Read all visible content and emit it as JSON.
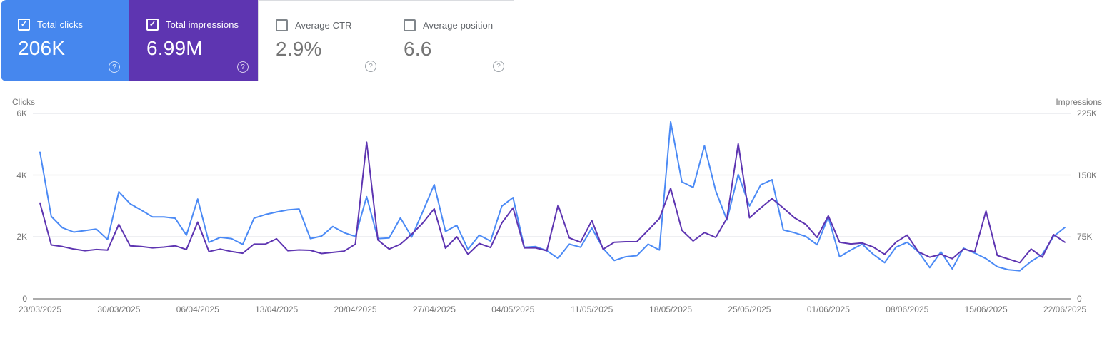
{
  "cards": [
    {
      "label": "Total clicks",
      "value": "206K",
      "checked": true,
      "bg": "#4687ee"
    },
    {
      "label": "Total impressions",
      "value": "6.99M",
      "checked": true,
      "bg": "#5e35b1"
    },
    {
      "label": "Average CTR",
      "value": "2.9%",
      "checked": false,
      "bg": "#ffffff"
    },
    {
      "label": "Average position",
      "value": "6.6",
      "checked": false,
      "bg": "#ffffff"
    }
  ],
  "icons": {
    "checkmark": "✓",
    "help": "?"
  },
  "chart_data": {
    "type": "line",
    "frequency": "daily",
    "grid": "horizontal",
    "x_range": [
      "23/03/2025",
      "22/06/2025"
    ],
    "x_tick_labels": [
      "23/03/2025",
      "30/03/2025",
      "06/04/2025",
      "13/04/2025",
      "20/04/2025",
      "27/04/2025",
      "04/05/2025",
      "11/05/2025",
      "18/05/2025",
      "25/05/2025",
      "01/06/2025",
      "08/06/2025",
      "15/06/2025",
      "22/06/2025"
    ],
    "left_axis": {
      "title": "Clicks",
      "ticks": [
        "6K",
        "4K",
        "2K",
        "0"
      ],
      "max": 6000
    },
    "right_axis": {
      "title": "Impressions",
      "ticks": [
        "225K",
        "150K",
        "75K",
        "0"
      ],
      "max": 225000
    },
    "series": [
      {
        "name": "Total clicks",
        "axis": "left",
        "color": "#4b8af5",
        "values": [
          4740,
          2660,
          2290,
          2150,
          2200,
          2250,
          1910,
          3460,
          3070,
          2860,
          2640,
          2640,
          2600,
          2050,
          3220,
          1820,
          1980,
          1940,
          1750,
          2600,
          2720,
          2800,
          2870,
          2900,
          1940,
          2020,
          2330,
          2130,
          2010,
          3300,
          1940,
          1960,
          2610,
          1990,
          2830,
          3690,
          2170,
          2370,
          1590,
          2050,
          1860,
          2990,
          3270,
          1660,
          1680,
          1550,
          1300,
          1760,
          1660,
          2280,
          1620,
          1230,
          1350,
          1390,
          1760,
          1570,
          5730,
          3780,
          3600,
          4950,
          3490,
          2540,
          4020,
          3000,
          3680,
          3850,
          2220,
          2130,
          2010,
          1740,
          2640,
          1350,
          1570,
          1760,
          1430,
          1160,
          1660,
          1820,
          1510,
          1000,
          1510,
          960,
          1630,
          1470,
          1290,
          1030,
          930,
          900,
          1200,
          1430,
          2010,
          2300
        ]
      },
      {
        "name": "Total impressions",
        "axis": "right",
        "color": "#5e35b1",
        "values": [
          116000,
          65000,
          63000,
          60000,
          58000,
          59500,
          58700,
          90000,
          64000,
          63000,
          61500,
          62400,
          64000,
          59500,
          92800,
          57000,
          60000,
          57000,
          55000,
          66000,
          66000,
          72500,
          58000,
          59000,
          58500,
          54600,
          56000,
          57500,
          66000,
          190000,
          71000,
          60000,
          66000,
          78000,
          92000,
          109000,
          61000,
          75000,
          53700,
          66800,
          61900,
          91600,
          110000,
          61500,
          61500,
          58000,
          113500,
          73500,
          68300,
          94600,
          59800,
          68300,
          68900,
          68900,
          82900,
          97000,
          134000,
          82900,
          69800,
          80000,
          74100,
          97400,
          188000,
          98000,
          110000,
          121400,
          110000,
          98000,
          90000,
          74100,
          100400,
          68300,
          66200,
          67400,
          62400,
          53700,
          68300,
          77000,
          56600,
          50200,
          53700,
          48400,
          60100,
          56600,
          106200,
          52300,
          47900,
          43500,
          60100,
          50200,
          77600,
          68300
        ]
      }
    ]
  }
}
